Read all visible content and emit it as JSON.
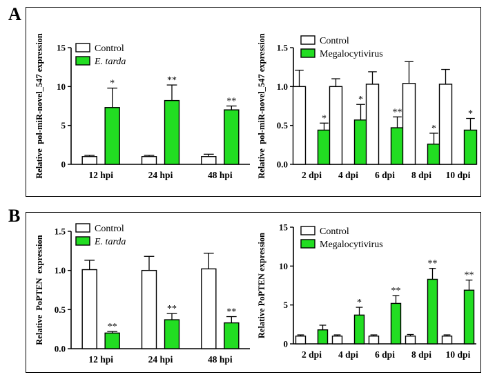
{
  "panels": [
    {
      "letter": "A"
    },
    {
      "letter": "B"
    }
  ],
  "colors": {
    "control": "#ffffff",
    "treated": "#22dd22",
    "stroke": "#000000"
  },
  "chart_data": [
    {
      "id": "A-left",
      "type": "bar",
      "ylabel": "Relative  pol-miR-novel_547 expression",
      "categories": [
        "12 hpi",
        "24 hpi",
        "48 hpi"
      ],
      "ylim": [
        0,
        15
      ],
      "yticks": [
        "0",
        "5",
        "10",
        "15"
      ],
      "legend": {
        "placement": "top-left",
        "entries": [
          {
            "label": "Control"
          },
          {
            "label": "E. tarda",
            "italic": true
          }
        ]
      },
      "series": [
        {
          "name": "Control",
          "values": [
            1.0,
            1.0,
            1.0
          ],
          "errors": [
            0.15,
            0.15,
            0.3
          ],
          "marks": [
            "",
            "",
            ""
          ]
        },
        {
          "name": "E. tarda",
          "values": [
            7.3,
            8.2,
            7.0
          ],
          "errors": [
            2.5,
            2.0,
            0.5
          ],
          "marks": [
            "*",
            "**",
            "**"
          ]
        }
      ]
    },
    {
      "id": "A-right",
      "type": "bar",
      "ylabel": "Relative  pol-miR-novel_547 expression",
      "categories": [
        "2 dpi",
        "4 dpi",
        "6 dpi",
        "8 dpi",
        "10 dpi"
      ],
      "ylim": [
        0,
        1.5
      ],
      "yticks": [
        "0.0",
        "0.5",
        "1.0",
        "1.5"
      ],
      "legend": {
        "placement": "top-left",
        "entries": [
          {
            "label": "Control"
          },
          {
            "label": "Megalocytivirus"
          }
        ]
      },
      "series": [
        {
          "name": "Control",
          "values": [
            1.0,
            1.0,
            1.03,
            1.04,
            1.03
          ],
          "errors": [
            0.21,
            0.1,
            0.16,
            0.28,
            0.19
          ],
          "marks": [
            "",
            "",
            "",
            "",
            ""
          ]
        },
        {
          "name": "Megalocytivirus",
          "values": [
            0.44,
            0.57,
            0.47,
            0.26,
            0.44
          ],
          "errors": [
            0.09,
            0.2,
            0.14,
            0.14,
            0.15
          ],
          "marks": [
            "*",
            "*",
            "**",
            "*",
            "*"
          ]
        }
      ]
    },
    {
      "id": "B-left",
      "type": "bar",
      "ylabel": "Relative  PoPTEN  expression",
      "categories": [
        "12 hpi",
        "24 hpi",
        "48 hpi"
      ],
      "ylim": [
        0,
        1.5
      ],
      "yticks": [
        "0.0",
        "0.5",
        "1.0",
        "1.5"
      ],
      "legend": {
        "placement": "top-left",
        "entries": [
          {
            "label": "Control"
          },
          {
            "label": "E. tarda",
            "italic": true
          }
        ]
      },
      "series": [
        {
          "name": "Control",
          "values": [
            1.01,
            1.0,
            1.02
          ],
          "errors": [
            0.12,
            0.18,
            0.2
          ],
          "marks": [
            "",
            "",
            ""
          ]
        },
        {
          "name": "E. tarda",
          "values": [
            0.2,
            0.37,
            0.33
          ],
          "errors": [
            0.02,
            0.08,
            0.08
          ],
          "marks": [
            "**",
            "**",
            "**"
          ]
        }
      ]
    },
    {
      "id": "B-right",
      "type": "bar",
      "ylabel": "Relative PoPTEN expression",
      "categories": [
        "2 dpi",
        "4 dpi",
        "6 dpi",
        "8 dpi",
        "10 dpi"
      ],
      "ylim": [
        0,
        15
      ],
      "yticks": [
        "0",
        "5",
        "10",
        "15"
      ],
      "legend": {
        "placement": "top-left",
        "entries": [
          {
            "label": "Control"
          },
          {
            "label": "Megalocytivirus"
          }
        ]
      },
      "series": [
        {
          "name": "Control",
          "values": [
            1.0,
            1.0,
            1.0,
            1.0,
            1.0
          ],
          "errors": [
            0.15,
            0.15,
            0.15,
            0.2,
            0.15
          ],
          "marks": [
            "",
            "",
            "",
            "",
            ""
          ]
        },
        {
          "name": "Megalocytivirus",
          "values": [
            1.8,
            3.7,
            5.2,
            8.3,
            6.9
          ],
          "errors": [
            0.6,
            1.0,
            1.0,
            1.4,
            1.3
          ],
          "marks": [
            "",
            "*",
            "**",
            "**",
            "**"
          ]
        }
      ]
    }
  ]
}
